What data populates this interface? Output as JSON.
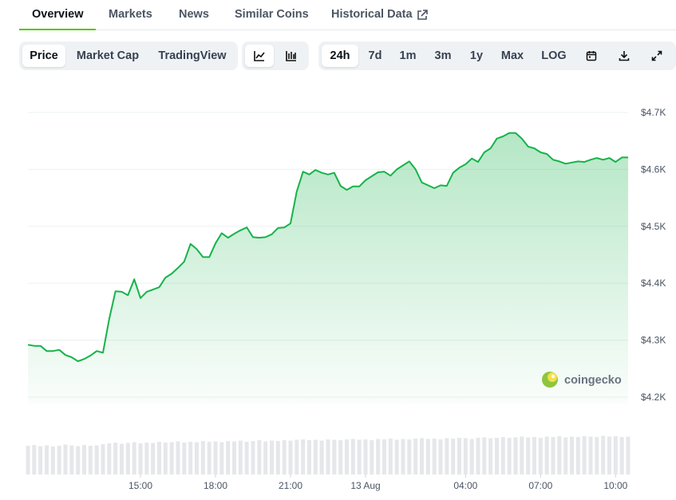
{
  "tabs": [
    "Overview",
    "Markets",
    "News",
    "Similar Coins",
    "Historical Data"
  ],
  "chart_views": [
    "Price",
    "Market Cap",
    "TradingView"
  ],
  "time_ranges": [
    "24h",
    "7d",
    "1m",
    "3m",
    "1y",
    "Max"
  ],
  "scale_toggle": "LOG",
  "chart_data": {
    "type": "line",
    "color": "#16b34a",
    "watermark": "coingecko",
    "x": [
      10.5,
      10.75,
      11,
      11.25,
      11.5,
      11.75,
      12,
      12.25,
      12.5,
      12.75,
      13,
      13.25,
      13.5,
      13.75,
      14,
      14.25,
      14.5,
      14.75,
      15,
      15.25,
      15.5,
      15.75,
      16,
      16.25,
      16.5,
      16.75,
      17,
      17.25,
      17.5,
      17.75,
      18,
      18.25,
      18.5,
      18.75,
      19,
      19.25,
      19.5,
      19.75,
      20,
      20.25,
      20.5,
      20.75,
      21,
      21.25,
      21.5,
      21.75,
      22,
      22.25,
      22.5,
      22.75,
      23,
      23.25,
      23.5,
      23.75,
      24,
      24.25,
      24.5,
      24.75,
      25,
      25.25,
      25.5,
      25.75,
      26,
      26.25,
      26.5,
      26.75,
      27,
      27.25,
      27.5,
      27.75,
      28,
      28.25,
      28.5,
      28.75,
      29,
      29.25,
      29.5,
      29.75,
      30,
      30.25,
      30.5,
      30.75,
      31,
      31.25,
      31.5,
      31.75,
      32,
      32.25,
      32.5,
      32.75,
      33,
      33.25,
      33.5,
      33.75,
      34,
      34.25,
      34.5
    ],
    "values": [
      4292,
      4290,
      4290,
      4281,
      4281,
      4283,
      4274,
      4270,
      4263,
      4267,
      4273,
      4281,
      4278,
      4337,
      4386,
      4385,
      4379,
      4407,
      4374,
      4385,
      4389,
      4393,
      4410,
      4417,
      4427,
      4438,
      4469,
      4460,
      4446,
      4446,
      4470,
      4488,
      4480,
      4487,
      4493,
      4498,
      4481,
      4480,
      4481,
      4486,
      4497,
      4498,
      4505,
      4561,
      4596,
      4591,
      4599,
      4594,
      4591,
      4594,
      4571,
      4564,
      4570,
      4570,
      4581,
      4588,
      4595,
      4596,
      4589,
      4600,
      4607,
      4614,
      4600,
      4577,
      4572,
      4567,
      4572,
      4571,
      4594,
      4603,
      4609,
      4619,
      4613,
      4630,
      4637,
      4654,
      4658,
      4664,
      4664,
      4654,
      4640,
      4637,
      4630,
      4627,
      4617,
      4614,
      4610,
      4612,
      4614,
      4613,
      4617,
      4620,
      4617,
      4620,
      4613,
      4621,
      4621
    ],
    "volume": [
      72,
      74,
      71,
      73,
      70,
      72,
      75,
      73,
      71,
      74,
      72,
      73,
      76,
      78,
      80,
      77,
      79,
      81,
      78,
      80,
      79,
      82,
      80,
      81,
      83,
      80,
      82,
      81,
      84,
      82,
      83,
      81,
      84,
      83,
      85,
      82,
      84,
      86,
      83,
      85,
      84,
      86,
      85,
      87,
      88,
      86,
      87,
      85,
      88,
      87,
      86,
      88,
      89,
      87,
      88,
      86,
      89,
      88,
      90,
      87,
      89,
      88,
      90,
      91,
      89,
      90,
      88,
      91,
      90,
      92,
      91,
      89,
      92,
      93,
      91,
      92,
      94,
      92,
      93,
      95,
      93,
      94,
      92,
      95,
      94,
      96,
      93,
      95,
      94,
      96,
      95,
      94,
      97,
      95,
      96,
      94,
      95
    ],
    "volume_ylim": [
      0,
      100
    ],
    "xlim": [
      10.5,
      34.5
    ],
    "xticks": [
      {
        "value": 15,
        "label": "15:00"
      },
      {
        "value": 18,
        "label": "18:00"
      },
      {
        "value": 21,
        "label": "21:00"
      },
      {
        "value": 24,
        "label": "13 Aug"
      },
      {
        "value": 28,
        "label": "04:00"
      },
      {
        "value": 31,
        "label": "07:00"
      },
      {
        "value": 34,
        "label": "10:00"
      }
    ],
    "ylim": [
      4200,
      4700
    ],
    "yticks": [
      {
        "value": 4200,
        "label": "$4.2K"
      },
      {
        "value": 4300,
        "label": "$4.3K"
      },
      {
        "value": 4400,
        "label": "$4.4K"
      },
      {
        "value": 4500,
        "label": "$4.5K"
      },
      {
        "value": 4600,
        "label": "$4.6K"
      },
      {
        "value": 4700,
        "label": "$4.7K"
      }
    ],
    "grid": true
  }
}
